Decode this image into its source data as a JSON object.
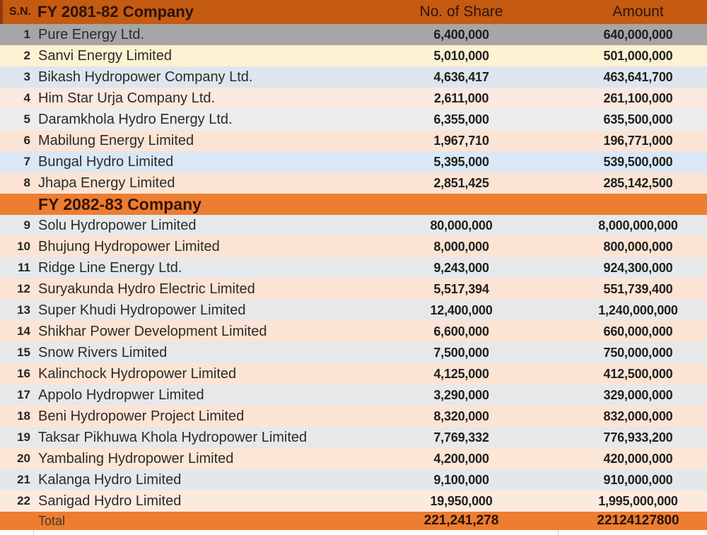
{
  "header": {
    "sn_label": "S.N.",
    "company_label": "FY 2081-82 Company",
    "shares_label": "No. of Share",
    "amount_label": "Amount"
  },
  "sections": [
    {
      "title": null,
      "rows": [
        {
          "sn": "1",
          "company": "Pure Energy Ltd.",
          "shares": "6,400,000",
          "amount": "640,000,000",
          "bg": "#a6a6a6"
        },
        {
          "sn": "2",
          "company": "Sanvi Energy Limited",
          "shares": "5,010,000",
          "amount": "501,000,000",
          "bg": "#fdf2d2"
        },
        {
          "sn": "3",
          "company": "Bikash Hydropower Company Ltd.",
          "shares": "4,636,417",
          "amount": "463,641,700",
          "bg": "#dfe5ee"
        },
        {
          "sn": "4",
          "company": "Him Star Urja Company Ltd.",
          "shares": "2,611,000",
          "amount": "261,100,000",
          "bg": "#fbe8df"
        },
        {
          "sn": "5",
          "company": "Daramkhola Hydro Energy Ltd.",
          "shares": "6,355,000",
          "amount": "635,500,000",
          "bg": "#ebedee"
        },
        {
          "sn": "6",
          "company": "Mabilung Energy Limited",
          "shares": "1,967,710",
          "amount": "196,771,000",
          "bg": "#fce4d4"
        },
        {
          "sn": "7",
          "company": "Bungal Hydro Limited",
          "shares": "5,395,000",
          "amount": "539,500,000",
          "bg": "#d9e8f4"
        },
        {
          "sn": "8",
          "company": "Jhapa Energy Limited",
          "shares": "2,851,425",
          "amount": "285,142,500",
          "bg": "#fce4d4"
        }
      ]
    },
    {
      "title": "FY 2082-83 Company",
      "rows": [
        {
          "sn": "9",
          "company": "Solu Hydropower Limited",
          "shares": "80,000,000",
          "amount": "8,000,000,000",
          "bg": "#e7e8ea"
        },
        {
          "sn": "10",
          "company": "Bhujung Hydropower Limited",
          "shares": "8,000,000",
          "amount": "800,000,000",
          "bg": "#fce4d4"
        },
        {
          "sn": "11",
          "company": "Ridge Line Energy Ltd.",
          "shares": "9,243,000",
          "amount": "924,300,000",
          "bg": "#e7e8ea"
        },
        {
          "sn": "12",
          "company": "Suryakunda Hydro Electric Limited",
          "shares": "5,517,394",
          "amount": "551,739,400",
          "bg": "#fce4d4"
        },
        {
          "sn": "13",
          "company": "Super Khudi Hydropower Limited",
          "shares": "12,400,000",
          "amount": "1,240,000,000",
          "bg": "#e7e8ea"
        },
        {
          "sn": "14",
          "company": "Shikhar Power Development Limited",
          "shares": "6,600,000",
          "amount": "660,000,000",
          "bg": "#fce4d4"
        },
        {
          "sn": "15",
          "company": "Snow Rivers Limited",
          "shares": "7,500,000",
          "amount": "750,000,000",
          "bg": "#e7e8ea"
        },
        {
          "sn": "16",
          "company": "Kalinchock Hydropower Limited",
          "shares": "4,125,000",
          "amount": "412,500,000",
          "bg": "#fce4d4"
        },
        {
          "sn": "17",
          "company": "Appolo Hydropwer Limited",
          "shares": "3,290,000",
          "amount": "329,000,000",
          "bg": "#e7e8ea"
        },
        {
          "sn": "18",
          "company": "Beni Hydropower Project Limited",
          "shares": "8,320,000",
          "amount": "832,000,000",
          "bg": "#fce4d4"
        },
        {
          "sn": "19",
          "company": "Taksar Pikhuwa Khola Hydropower Limited",
          "shares": "7,769,332",
          "amount": "776,933,200",
          "bg": "#e7e8ea"
        },
        {
          "sn": "20",
          "company": "Yambaling Hydropower Limited",
          "shares": "4,200,000",
          "amount": "420,000,000",
          "bg": "#fce6d6"
        },
        {
          "sn": "21",
          "company": "Kalanga Hydro Limited",
          "shares": "9,100,000",
          "amount": "910,000,000",
          "bg": "#e5e8ea"
        },
        {
          "sn": "22",
          "company": "Sanigad Hydro Limited",
          "shares": "19,950,000",
          "amount": "1,995,000,000",
          "bg": "#fdeade"
        }
      ]
    }
  ],
  "footer": {
    "label": "Total",
    "shares": "221,241,278",
    "amount": "22124127800"
  },
  "colors": {
    "header_bg": "#c55a11",
    "header_edge": "#8a3a0e",
    "section_header_bg": "#ed7d31",
    "total_bg": "#ed7d31",
    "header_text": "#2a140b",
    "body_text": "#2b2b2b",
    "gridline": "#c8c8c8"
  }
}
